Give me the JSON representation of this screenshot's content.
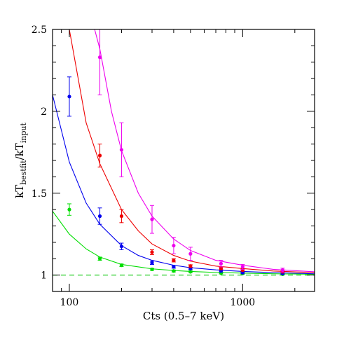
{
  "chart_data": {
    "type": "scatter",
    "title": "",
    "xlabel": "Cts (0.5–7 keV)",
    "ylabel": {
      "base": "kT",
      "sub1": "bestfit",
      "sep": "/kT",
      "sub2": "input"
    },
    "xscale": "log",
    "xlim": [
      80,
      2600
    ],
    "ylim": [
      0.9,
      2.5
    ],
    "x_ticks": [
      100,
      1000
    ],
    "x_tick_labels": [
      "100",
      "1000"
    ],
    "y_ticks": [
      1,
      1.5,
      2,
      2.5
    ],
    "y_tick_labels": [
      "1",
      "1.5",
      "2",
      "2.5"
    ],
    "grid": false,
    "reference_line": {
      "y": 1,
      "style": "dashed",
      "color": "#22cc22"
    },
    "series": [
      {
        "color": "#00dd00",
        "points": [
          {
            "x": 100,
            "y": 1.4,
            "err": 0.035
          },
          {
            "x": 150,
            "y": 1.1,
            "err": 0.01
          },
          {
            "x": 200,
            "y": 1.06,
            "err": 0.008
          },
          {
            "x": 300,
            "y": 1.035,
            "err": 0.006
          },
          {
            "x": 400,
            "y": 1.025,
            "err": 0.006
          },
          {
            "x": 500,
            "y": 1.02,
            "err": 0.005
          },
          {
            "x": 750,
            "y": 1.012,
            "err": 0.005
          },
          {
            "x": 1000,
            "y": 1.01,
            "err": 0.005
          },
          {
            "x": 1700,
            "y": 1.005,
            "err": 0.004
          }
        ],
        "curve": [
          [
            80,
            1.39
          ],
          [
            100,
            1.25
          ],
          [
            125,
            1.16
          ],
          [
            150,
            1.11
          ],
          [
            200,
            1.065
          ],
          [
            300,
            1.038
          ],
          [
            400,
            1.028
          ],
          [
            500,
            1.022
          ],
          [
            700,
            1.016
          ],
          [
            1000,
            1.012
          ],
          [
            1500,
            1.008
          ],
          [
            2600,
            1.005
          ]
        ]
      },
      {
        "color": "#0000ee",
        "points": [
          {
            "x": 100,
            "y": 2.09,
            "err": 0.12
          },
          {
            "x": 150,
            "y": 1.36,
            "err": 0.05
          },
          {
            "x": 200,
            "y": 1.175,
            "err": 0.02
          },
          {
            "x": 300,
            "y": 1.075,
            "err": 0.01
          },
          {
            "x": 400,
            "y": 1.05,
            "err": 0.008
          },
          {
            "x": 500,
            "y": 1.04,
            "err": 0.007
          },
          {
            "x": 750,
            "y": 1.025,
            "err": 0.006
          },
          {
            "x": 1000,
            "y": 1.015,
            "err": 0.005
          },
          {
            "x": 1700,
            "y": 1.01,
            "err": 0.005
          }
        ],
        "curve": [
          [
            80,
            2.1
          ],
          [
            100,
            1.69
          ],
          [
            125,
            1.44
          ],
          [
            150,
            1.31
          ],
          [
            200,
            1.18
          ],
          [
            250,
            1.12
          ],
          [
            300,
            1.09
          ],
          [
            400,
            1.06
          ],
          [
            500,
            1.045
          ],
          [
            700,
            1.032
          ],
          [
            1000,
            1.022
          ],
          [
            1500,
            1.015
          ],
          [
            2600,
            1.008
          ]
        ]
      },
      {
        "color": "#ee0000",
        "points": [
          {
            "x": 150,
            "y": 1.73,
            "err": 0.07
          },
          {
            "x": 200,
            "y": 1.36,
            "err": 0.04
          },
          {
            "x": 300,
            "y": 1.14,
            "err": 0.015
          },
          {
            "x": 400,
            "y": 1.09,
            "err": 0.01
          },
          {
            "x": 500,
            "y": 1.055,
            "err": 0.008
          },
          {
            "x": 750,
            "y": 1.04,
            "err": 0.007
          },
          {
            "x": 1000,
            "y": 1.03,
            "err": 0.006
          },
          {
            "x": 1700,
            "y": 1.02,
            "err": 0.005
          }
        ],
        "curve": [
          [
            100,
            2.5
          ],
          [
            125,
            1.93
          ],
          [
            150,
            1.68
          ],
          [
            200,
            1.4
          ],
          [
            250,
            1.27
          ],
          [
            300,
            1.19
          ],
          [
            400,
            1.12
          ],
          [
            500,
            1.085
          ],
          [
            700,
            1.055
          ],
          [
            1000,
            1.04
          ],
          [
            1500,
            1.025
          ],
          [
            2600,
            1.015
          ]
        ]
      },
      {
        "color": "#ee00ee",
        "points": [
          {
            "x": 150,
            "y": 2.33,
            "err": 0.23
          },
          {
            "x": 200,
            "y": 1.765,
            "err": 0.165
          },
          {
            "x": 300,
            "y": 1.34,
            "err": 0.085
          },
          {
            "x": 400,
            "y": 1.18,
            "err": 0.05
          },
          {
            "x": 500,
            "y": 1.13,
            "err": 0.04
          },
          {
            "x": 750,
            "y": 1.07,
            "err": 0.02
          },
          {
            "x": 1000,
            "y": 1.05,
            "err": 0.015
          },
          {
            "x": 1700,
            "y": 1.03,
            "err": 0.012
          }
        ],
        "curve": [
          [
            140,
            2.5
          ],
          [
            150,
            2.38
          ],
          [
            175,
            2.0
          ],
          [
            200,
            1.76
          ],
          [
            250,
            1.5
          ],
          [
            300,
            1.36
          ],
          [
            400,
            1.22
          ],
          [
            500,
            1.15
          ],
          [
            700,
            1.09
          ],
          [
            1000,
            1.06
          ],
          [
            1500,
            1.035
          ],
          [
            2600,
            1.02
          ]
        ]
      }
    ]
  }
}
